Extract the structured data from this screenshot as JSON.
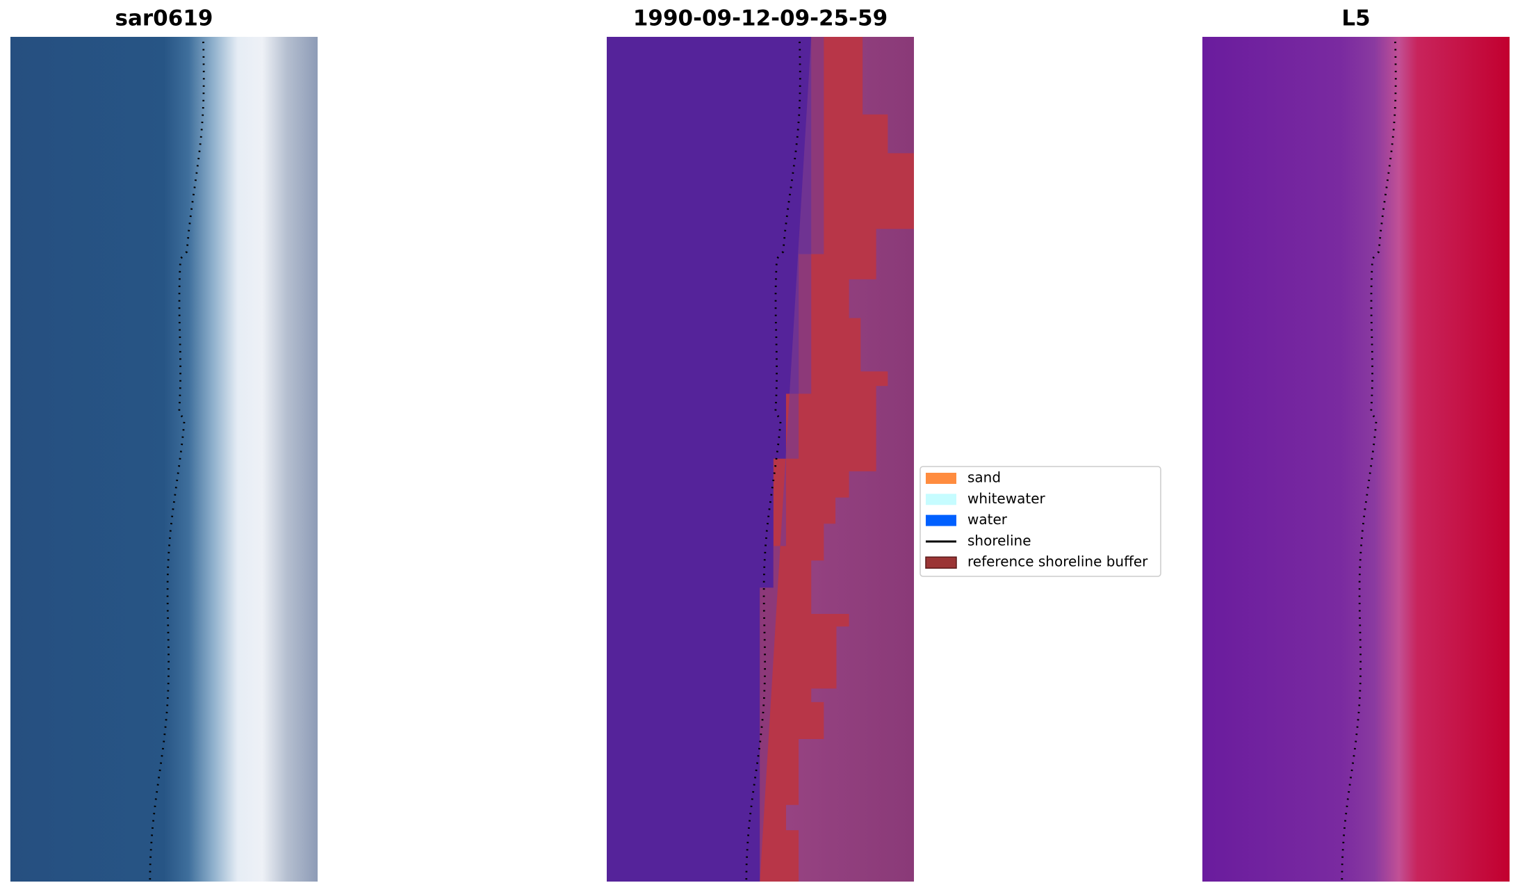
{
  "panels": [
    {
      "title": "sar0619"
    },
    {
      "title": "1990-09-12-09-25-59"
    },
    {
      "title": "L5"
    }
  ],
  "legend": [
    {
      "label": "sand",
      "color": "#ff8c3f"
    },
    {
      "label": "whitewater",
      "color": "#c6fcff"
    },
    {
      "label": "water",
      "color": "#0060ff"
    },
    {
      "label": "shoreline",
      "color": "#000000"
    },
    {
      "label": "reference shoreline buffer",
      "color": "#9b3535"
    }
  ]
}
